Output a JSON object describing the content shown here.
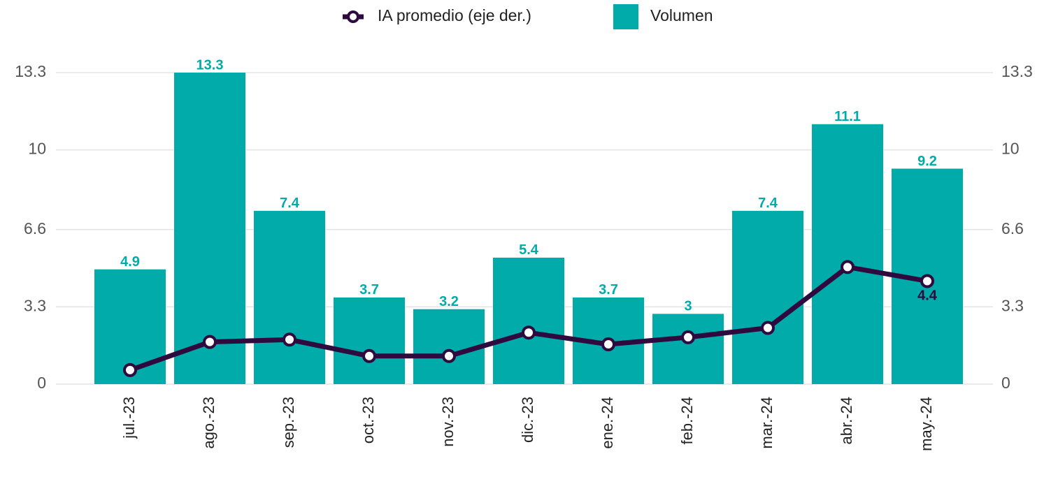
{
  "chart_data": {
    "type": "bar-line",
    "categories": [
      "jul.-23",
      "ago.-23",
      "sep.-23",
      "oct.-23",
      "nov.-23",
      "dic.-23",
      "ene.-24",
      "feb.-24",
      "mar.-24",
      "abr.-24",
      "may.-24"
    ],
    "series": [
      {
        "name": "IA promedio (eje der.)",
        "type": "line",
        "axis": "y2",
        "color": "#2e0a3e",
        "data_labels": "last",
        "values": [
          0.6,
          1.8,
          1.9,
          1.2,
          1.2,
          2.2,
          1.7,
          2.0,
          2.4,
          5.0,
          4.4
        ]
      },
      {
        "name": "Volumen",
        "type": "bar",
        "color": "#00aba9",
        "data_labels": "all",
        "values": [
          4.9,
          13.3,
          7.4,
          3.7,
          3.2,
          5.4,
          3.7,
          3,
          7.4,
          11.1,
          9.2
        ]
      }
    ],
    "ylim": [
      0,
      13.3
    ],
    "yticks": [
      0,
      3.3,
      6.6,
      10,
      13.3
    ],
    "y2lim": [
      0,
      13.3
    ],
    "y2ticks": [
      0,
      3.3,
      6.6,
      10,
      13.3
    ],
    "grid": true,
    "legend": "top"
  }
}
